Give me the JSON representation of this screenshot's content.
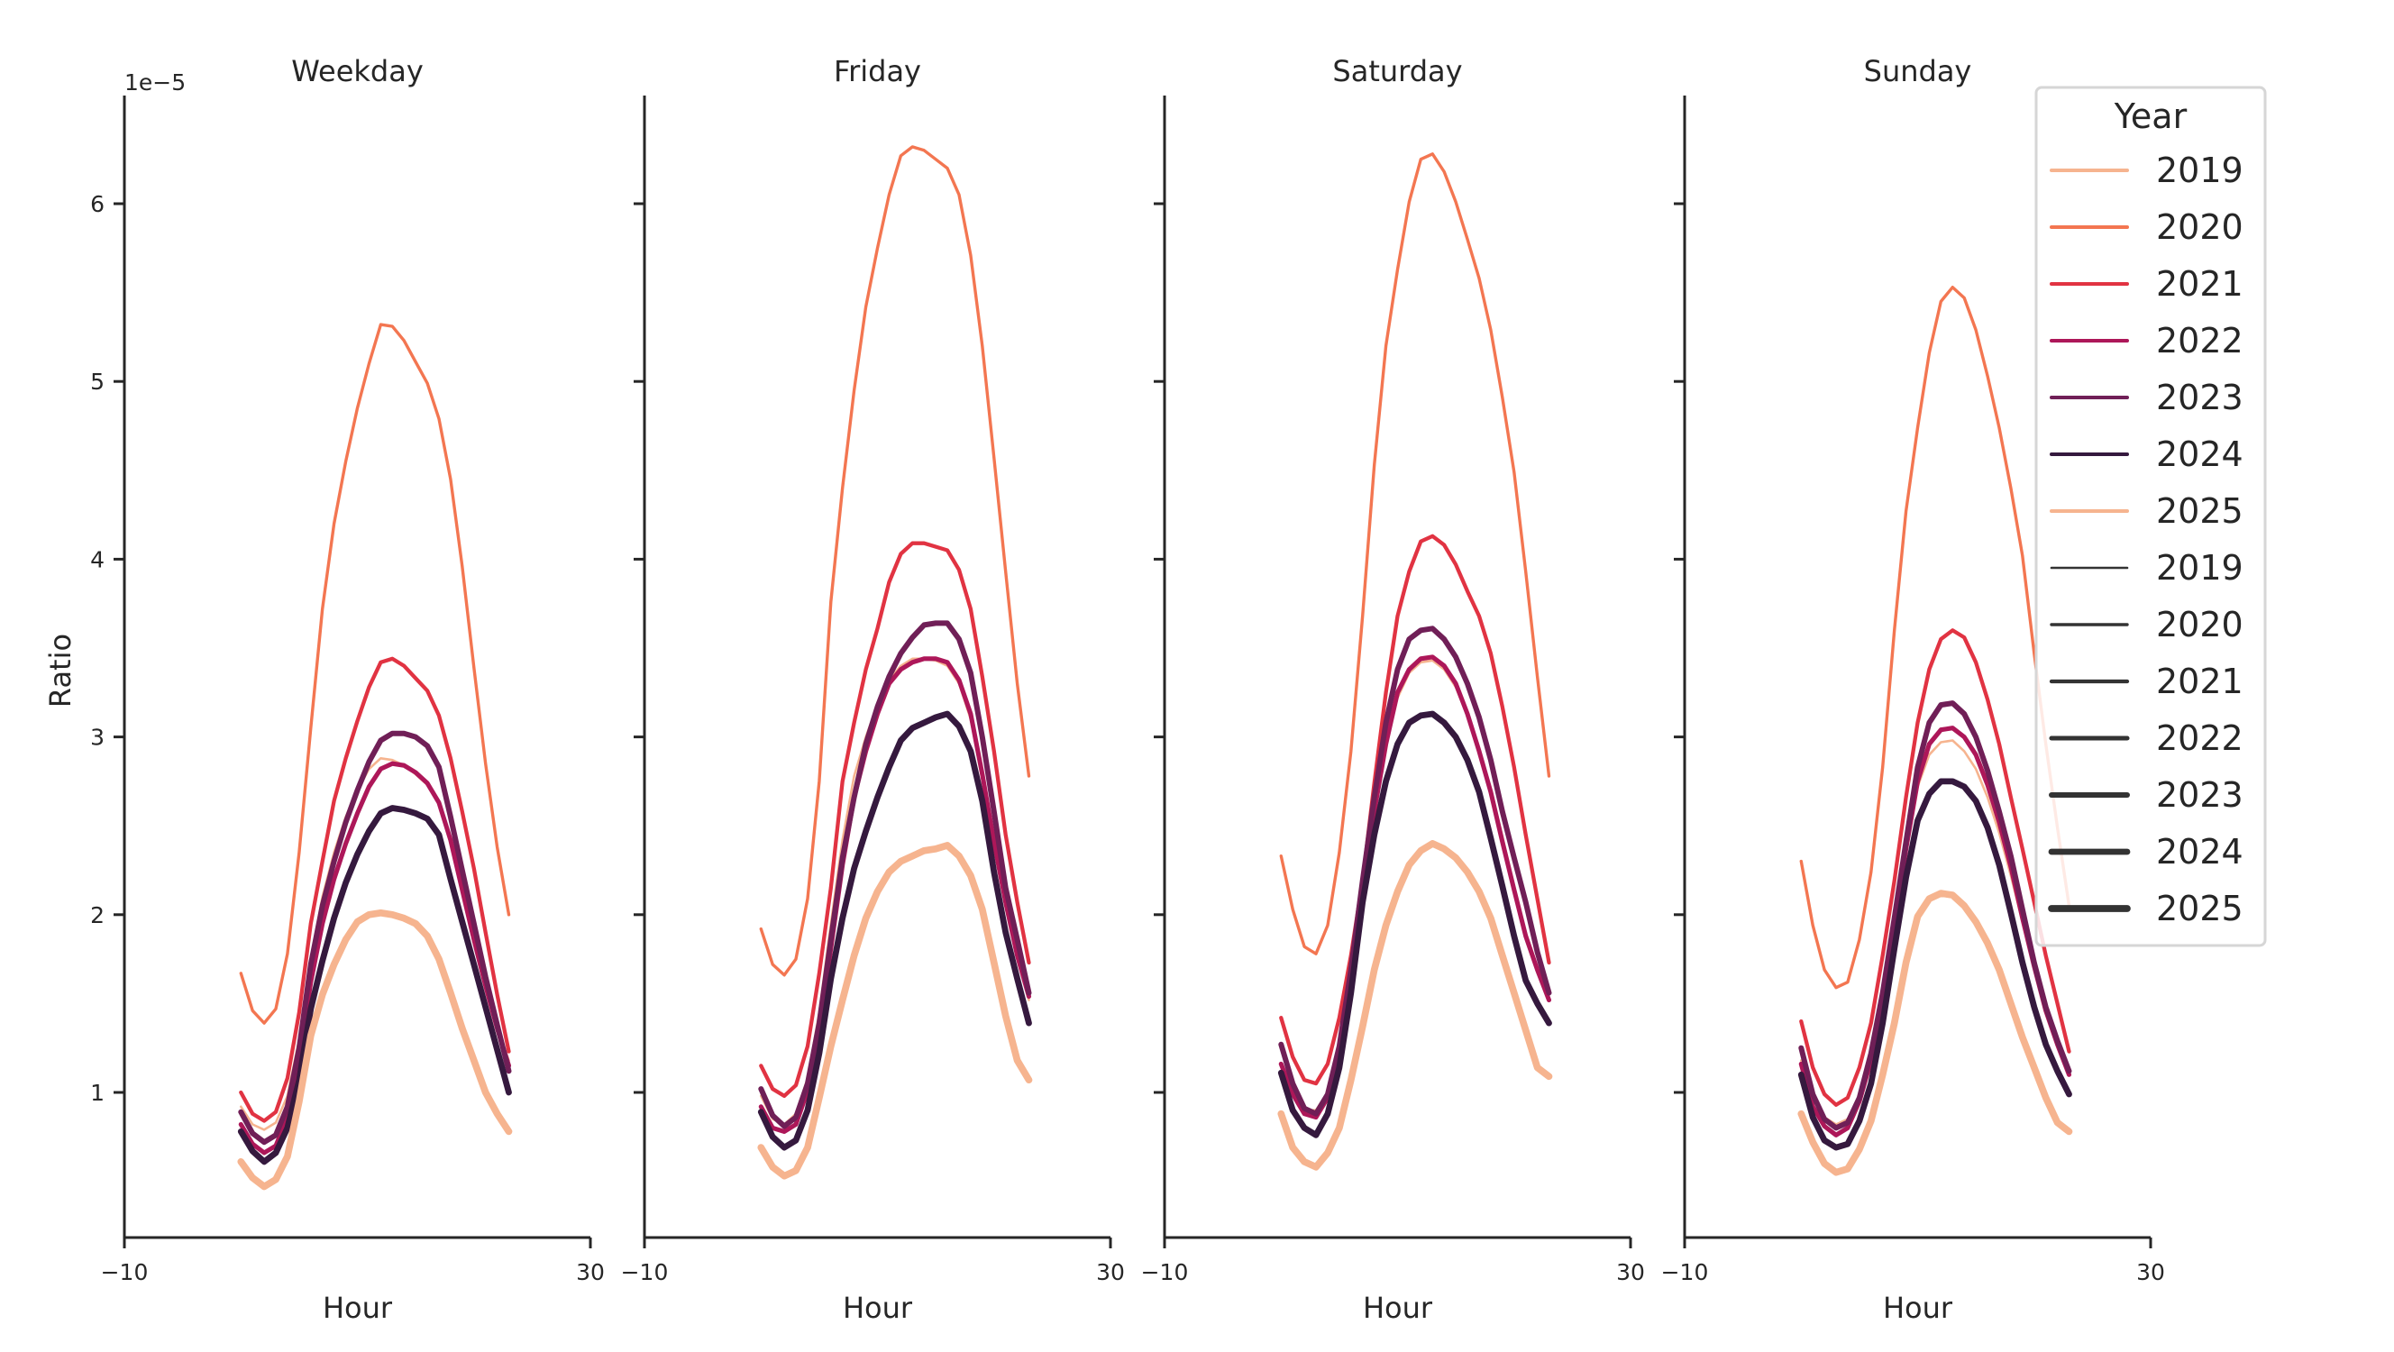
{
  "chart_data": {
    "type": "line",
    "x_label": "Hour",
    "y_label": "Ratio",
    "y_offset_label": "1e−5",
    "xlim": [
      -10,
      30
    ],
    "ylim": [
      0.18,
      6.56
    ],
    "x_ticks": [
      -10,
      30
    ],
    "x_tick_labels": [
      "−10",
      "30"
    ],
    "y_ticks": [
      1,
      2,
      3,
      4,
      5,
      6
    ],
    "y_tick_labels": [
      "1",
      "2",
      "3",
      "4",
      "5",
      "6"
    ],
    "grid": false,
    "x": [
      0,
      1,
      2,
      3,
      4,
      5,
      6,
      7,
      8,
      9,
      10,
      11,
      12,
      13,
      14,
      15,
      16,
      17,
      18,
      19,
      20,
      21,
      22,
      23
    ],
    "colors": {
      "2019": "#f6b48f",
      "2020": "#f37651",
      "2021": "#e13342",
      "2022": "#ad1759",
      "2023": "#701f57",
      "2024": "#35193e",
      "2025": "#f6b48f"
    },
    "size_color": "#333333",
    "legend": {
      "title": "Year",
      "position": "right",
      "hue_entries": [
        "2019",
        "2020",
        "2021",
        "2022",
        "2023",
        "2024",
        "2025"
      ],
      "size_entries": [
        "2019",
        "2020",
        "2021",
        "2022",
        "2023",
        "2024",
        "2025"
      ]
    },
    "panels": [
      {
        "title": "Weekday",
        "series": [
          {
            "name": "2019",
            "values": [
              0.92,
              0.82,
              0.79,
              0.83,
              0.98,
              1.3,
              1.75,
              2.1,
              2.35,
              2.55,
              2.7,
              2.82,
              2.88,
              2.87,
              2.84,
              2.79,
              2.73,
              2.62,
              2.4,
              2.12,
              1.84,
              1.58,
              1.36,
              1.18
            ]
          },
          {
            "name": "2020",
            "values": [
              1.67,
              1.46,
              1.39,
              1.47,
              1.78,
              2.35,
              3.05,
              3.72,
              4.2,
              4.55,
              4.85,
              5.1,
              5.32,
              5.31,
              5.23,
              5.11,
              4.99,
              4.79,
              4.45,
              3.96,
              3.39,
              2.85,
              2.38,
              2.0
            ]
          },
          {
            "name": "2021",
            "values": [
              1.0,
              0.88,
              0.84,
              0.89,
              1.08,
              1.45,
              1.95,
              2.3,
              2.64,
              2.88,
              3.09,
              3.28,
              3.42,
              3.44,
              3.4,
              3.33,
              3.26,
              3.12,
              2.88,
              2.58,
              2.26,
              1.9,
              1.55,
              1.23
            ]
          },
          {
            "name": "2022",
            "values": [
              0.82,
              0.71,
              0.66,
              0.7,
              0.86,
              1.18,
              1.62,
              1.95,
              2.2,
              2.4,
              2.57,
              2.72,
              2.82,
              2.85,
              2.84,
              2.8,
              2.74,
              2.63,
              2.42,
              2.14,
              1.86,
              1.6,
              1.36,
              1.15
            ]
          },
          {
            "name": "2023",
            "values": [
              0.89,
              0.77,
              0.72,
              0.76,
              0.92,
              1.25,
              1.72,
              2.05,
              2.3,
              2.52,
              2.7,
              2.86,
              2.98,
              3.02,
              3.02,
              3.0,
              2.95,
              2.83,
              2.55,
              2.25,
              1.95,
              1.65,
              1.38,
              1.12
            ]
          },
          {
            "name": "2024",
            "values": [
              0.78,
              0.67,
              0.61,
              0.66,
              0.8,
              1.07,
              1.47,
              1.74,
              1.98,
              2.18,
              2.34,
              2.47,
              2.57,
              2.6,
              2.59,
              2.57,
              2.54,
              2.45,
              2.2,
              1.96,
              1.72,
              1.48,
              1.24,
              1.0
            ]
          },
          {
            "name": "2025",
            "values": [
              0.61,
              0.52,
              0.47,
              0.51,
              0.64,
              0.95,
              1.32,
              1.55,
              1.72,
              1.86,
              1.96,
              2.0,
              2.01,
              2.0,
              1.98,
              1.95,
              1.88,
              1.75,
              1.56,
              1.36,
              1.18,
              1.0,
              0.88,
              0.78
            ]
          }
        ]
      },
      {
        "title": "Friday",
        "series": [
          {
            "name": "2019",
            "values": [
              0.98,
              0.85,
              0.82,
              0.88,
              1.08,
              1.45,
              1.95,
              2.42,
              2.78,
              3.0,
              3.18,
              3.32,
              3.4,
              3.44,
              3.44,
              3.43,
              3.4,
              3.3,
              3.1,
              2.76,
              2.38,
              2.04,
              1.76,
              1.52
            ]
          },
          {
            "name": "2020",
            "values": [
              1.92,
              1.72,
              1.66,
              1.75,
              2.09,
              2.75,
              3.76,
              4.4,
              4.95,
              5.42,
              5.75,
              6.05,
              6.27,
              6.32,
              6.3,
              6.25,
              6.2,
              6.05,
              5.71,
              5.2,
              4.57,
              3.93,
              3.3,
              2.78
            ]
          },
          {
            "name": "2021",
            "values": [
              1.15,
              1.02,
              0.98,
              1.04,
              1.26,
              1.67,
              2.15,
              2.75,
              3.08,
              3.38,
              3.61,
              3.87,
              4.03,
              4.09,
              4.09,
              4.07,
              4.05,
              3.94,
              3.72,
              3.34,
              2.92,
              2.45,
              2.07,
              1.73
            ]
          },
          {
            "name": "2022",
            "values": [
              0.92,
              0.8,
              0.78,
              0.82,
              1.01,
              1.35,
              1.81,
              2.28,
              2.66,
              2.92,
              3.13,
              3.3,
              3.38,
              3.42,
              3.44,
              3.44,
              3.42,
              3.32,
              3.13,
              2.79,
              2.41,
              2.07,
              1.77,
              1.54
            ]
          },
          {
            "name": "2023",
            "values": [
              1.02,
              0.87,
              0.81,
              0.86,
              1.05,
              1.39,
              1.86,
              2.32,
              2.66,
              2.96,
              3.17,
              3.34,
              3.47,
              3.56,
              3.63,
              3.64,
              3.64,
              3.55,
              3.36,
              3.0,
              2.58,
              2.15,
              1.86,
              1.56
            ]
          },
          {
            "name": "2024",
            "values": [
              0.89,
              0.75,
              0.69,
              0.73,
              0.9,
              1.22,
              1.64,
              1.98,
              2.26,
              2.47,
              2.66,
              2.83,
              2.98,
              3.05,
              3.08,
              3.11,
              3.13,
              3.06,
              2.92,
              2.64,
              2.24,
              1.9,
              1.64,
              1.39
            ]
          },
          {
            "name": "2025",
            "values": [
              0.69,
              0.58,
              0.53,
              0.56,
              0.69,
              0.97,
              1.26,
              1.52,
              1.77,
              1.98,
              2.13,
              2.24,
              2.3,
              2.33,
              2.36,
              2.37,
              2.39,
              2.33,
              2.22,
              2.03,
              1.73,
              1.43,
              1.18,
              1.07
            ]
          }
        ]
      },
      {
        "title": "Saturday",
        "series": [
          {
            "name": "2019",
            "values": [
              1.1,
              0.98,
              0.9,
              0.9,
              1.0,
              1.25,
              1.65,
              2.12,
              2.58,
              2.95,
              3.22,
              3.36,
              3.42,
              3.43,
              3.38,
              3.28,
              3.12,
              2.92,
              2.7,
              2.44,
              2.16,
              1.9,
              1.7,
              1.52
            ]
          },
          {
            "name": "2020",
            "values": [
              2.33,
              2.03,
              1.82,
              1.78,
              1.94,
              2.35,
              2.92,
              3.68,
              4.53,
              5.2,
              5.63,
              6.01,
              6.25,
              6.28,
              6.18,
              6.01,
              5.8,
              5.58,
              5.29,
              4.91,
              4.49,
              3.93,
              3.34,
              2.78
            ]
          },
          {
            "name": "2021",
            "values": [
              1.42,
              1.2,
              1.07,
              1.05,
              1.16,
              1.42,
              1.77,
              2.19,
              2.74,
              3.25,
              3.68,
              3.93,
              4.1,
              4.13,
              4.08,
              3.97,
              3.82,
              3.68,
              3.47,
              3.17,
              2.83,
              2.45,
              2.09,
              1.73
            ]
          },
          {
            "name": "2022",
            "values": [
              1.16,
              0.99,
              0.88,
              0.86,
              0.97,
              1.22,
              1.6,
              2.11,
              2.58,
              2.96,
              3.25,
              3.38,
              3.44,
              3.45,
              3.4,
              3.3,
              3.13,
              2.92,
              2.69,
              2.41,
              2.14,
              1.88,
              1.69,
              1.52
            ]
          },
          {
            "name": "2023",
            "values": [
              1.27,
              1.05,
              0.91,
              0.88,
              0.99,
              1.26,
              1.69,
              2.19,
              2.66,
              3.08,
              3.38,
              3.55,
              3.6,
              3.61,
              3.55,
              3.45,
              3.3,
              3.11,
              2.87,
              2.58,
              2.32,
              2.07,
              1.79,
              1.56
            ]
          },
          {
            "name": "2024",
            "values": [
              1.11,
              0.9,
              0.8,
              0.76,
              0.88,
              1.14,
              1.56,
              2.07,
              2.45,
              2.75,
              2.96,
              3.08,
              3.12,
              3.13,
              3.08,
              3.0,
              2.87,
              2.69,
              2.43,
              2.16,
              1.88,
              1.63,
              1.5,
              1.39
            ]
          },
          {
            "name": "2025",
            "values": [
              0.88,
              0.69,
              0.61,
              0.58,
              0.66,
              0.8,
              1.07,
              1.37,
              1.69,
              1.94,
              2.13,
              2.28,
              2.36,
              2.4,
              2.37,
              2.32,
              2.24,
              2.13,
              1.98,
              1.77,
              1.56,
              1.35,
              1.14,
              1.09
            ]
          }
        ]
      },
      {
        "title": "Sunday",
        "series": [
          {
            "name": "2019",
            "values": [
              1.18,
              0.98,
              0.86,
              0.82,
              0.85,
              0.98,
              1.22,
              1.58,
              1.98,
              2.38,
              2.72,
              2.9,
              2.97,
              2.98,
              2.92,
              2.82,
              2.66,
              2.46,
              2.22,
              1.96,
              1.7,
              1.46,
              1.26,
              1.1
            ]
          },
          {
            "name": "2020",
            "values": [
              2.3,
              1.94,
              1.69,
              1.59,
              1.62,
              1.86,
              2.24,
              2.83,
              3.6,
              4.27,
              4.74,
              5.16,
              5.45,
              5.53,
              5.47,
              5.29,
              5.03,
              4.74,
              4.4,
              4.02,
              3.47,
              2.96,
              2.49,
              2.05
            ]
          },
          {
            "name": "2021",
            "values": [
              1.4,
              1.14,
              0.99,
              0.93,
              0.97,
              1.14,
              1.39,
              1.77,
              2.19,
              2.66,
              3.08,
              3.38,
              3.55,
              3.6,
              3.56,
              3.42,
              3.21,
              2.96,
              2.66,
              2.37,
              2.07,
              1.77,
              1.5,
              1.23
            ]
          },
          {
            "name": "2022",
            "values": [
              1.16,
              0.92,
              0.81,
              0.76,
              0.8,
              0.95,
              1.18,
              1.52,
              1.94,
              2.37,
              2.75,
              2.96,
              3.04,
              3.05,
              3.0,
              2.9,
              2.73,
              2.52,
              2.27,
              1.98,
              1.71,
              1.46,
              1.27,
              1.1
            ]
          },
          {
            "name": "2023",
            "values": [
              1.25,
              0.99,
              0.85,
              0.8,
              0.83,
              0.97,
              1.22,
              1.56,
              1.98,
              2.41,
              2.83,
              3.08,
              3.18,
              3.19,
              3.13,
              3.0,
              2.81,
              2.58,
              2.33,
              2.03,
              1.73,
              1.48,
              1.29,
              1.12
            ]
          },
          {
            "name": "2024",
            "values": [
              1.1,
              0.86,
              0.73,
              0.69,
              0.71,
              0.84,
              1.05,
              1.39,
              1.81,
              2.21,
              2.53,
              2.68,
              2.75,
              2.75,
              2.72,
              2.64,
              2.49,
              2.28,
              2.01,
              1.73,
              1.48,
              1.27,
              1.12,
              0.99
            ]
          },
          {
            "name": "2025",
            "values": [
              0.88,
              0.72,
              0.6,
              0.55,
              0.57,
              0.68,
              0.84,
              1.1,
              1.39,
              1.73,
              1.99,
              2.09,
              2.12,
              2.11,
              2.05,
              1.96,
              1.84,
              1.69,
              1.5,
              1.31,
              1.14,
              0.97,
              0.83,
              0.78
            ]
          }
        ]
      }
    ]
  }
}
